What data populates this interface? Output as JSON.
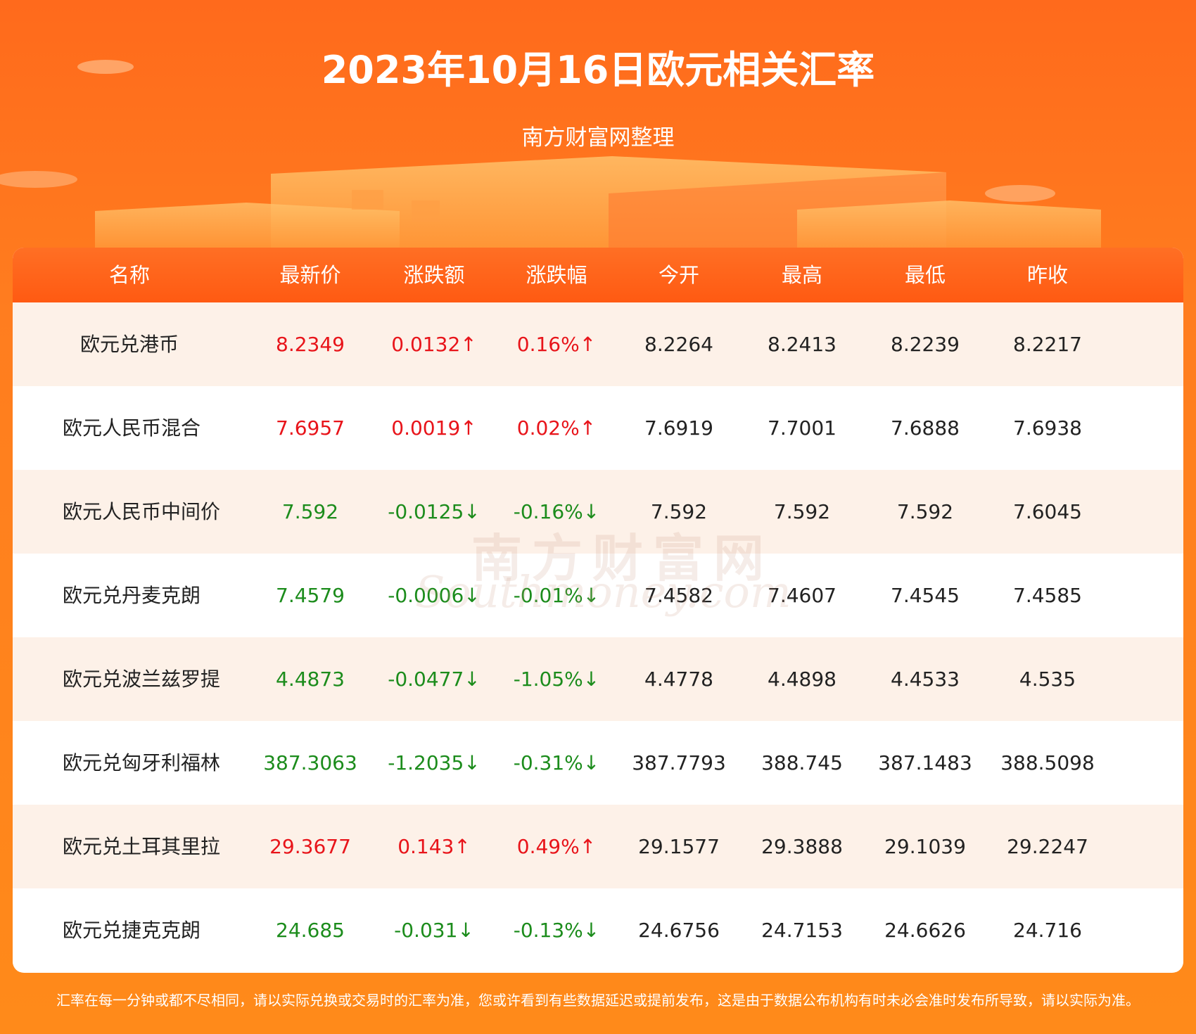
{
  "header": {
    "title": "2023年10月16日欧元相关汇率",
    "subtitle": "南方财富网整理"
  },
  "table": {
    "headers": [
      "名称",
      "最新价",
      "涨跌额",
      "涨跌幅",
      "今开",
      "最高",
      "最低",
      "昨收"
    ],
    "rows": [
      [
        "欧元兑港币",
        "8.2349",
        "0.0132↑",
        "0.16%↑",
        "8.2264",
        "8.2413",
        "8.2239",
        "8.2217"
      ],
      [
        "欧元人民币混合",
        "7.6957",
        "0.0019↑",
        "0.02%↑",
        "7.6919",
        "7.7001",
        "7.6888",
        "7.6938"
      ],
      [
        "欧元人民币中间价",
        "7.592",
        "-0.0125↓",
        "-0.16%↓",
        "7.592",
        "7.592",
        "7.592",
        "7.6045"
      ],
      [
        "欧元兑丹麦克朗",
        "7.4579",
        "-0.0006↓",
        "-0.01%↓",
        "7.4582",
        "7.4607",
        "7.4545",
        "7.4585"
      ],
      [
        "欧元兑波兰兹罗提",
        "4.4873",
        "-0.0477↓",
        "-1.05%↓",
        "4.4778",
        "4.4898",
        "4.4533",
        "4.535"
      ],
      [
        "欧元兑匈牙利福林",
        "387.3063",
        "-1.2035↓",
        "-0.31%↓",
        "387.7793",
        "388.745",
        "387.1483",
        "388.5098"
      ],
      [
        "欧元兑土耳其里拉",
        "29.3677",
        "0.143↑",
        "0.49%↑",
        "29.1577",
        "29.3888",
        "29.1039",
        "29.2247"
      ],
      [
        "欧元兑捷克克朗",
        "24.685",
        "-0.031↓",
        "-0.13%↓",
        "24.6756",
        "24.7153",
        "24.6626",
        "24.716"
      ]
    ]
  },
  "watermark": {
    "name": "南方财富网",
    "site": "Southmoney.com"
  },
  "footer": {
    "note": "汇率在每一分钟或都不尽相同，请以实际兑换或交易时的汇率为准，您或许看到有些数据延迟或提前发布，这是由于数据公布机构有时未必会准时发布所导致，请以实际为准。"
  }
}
